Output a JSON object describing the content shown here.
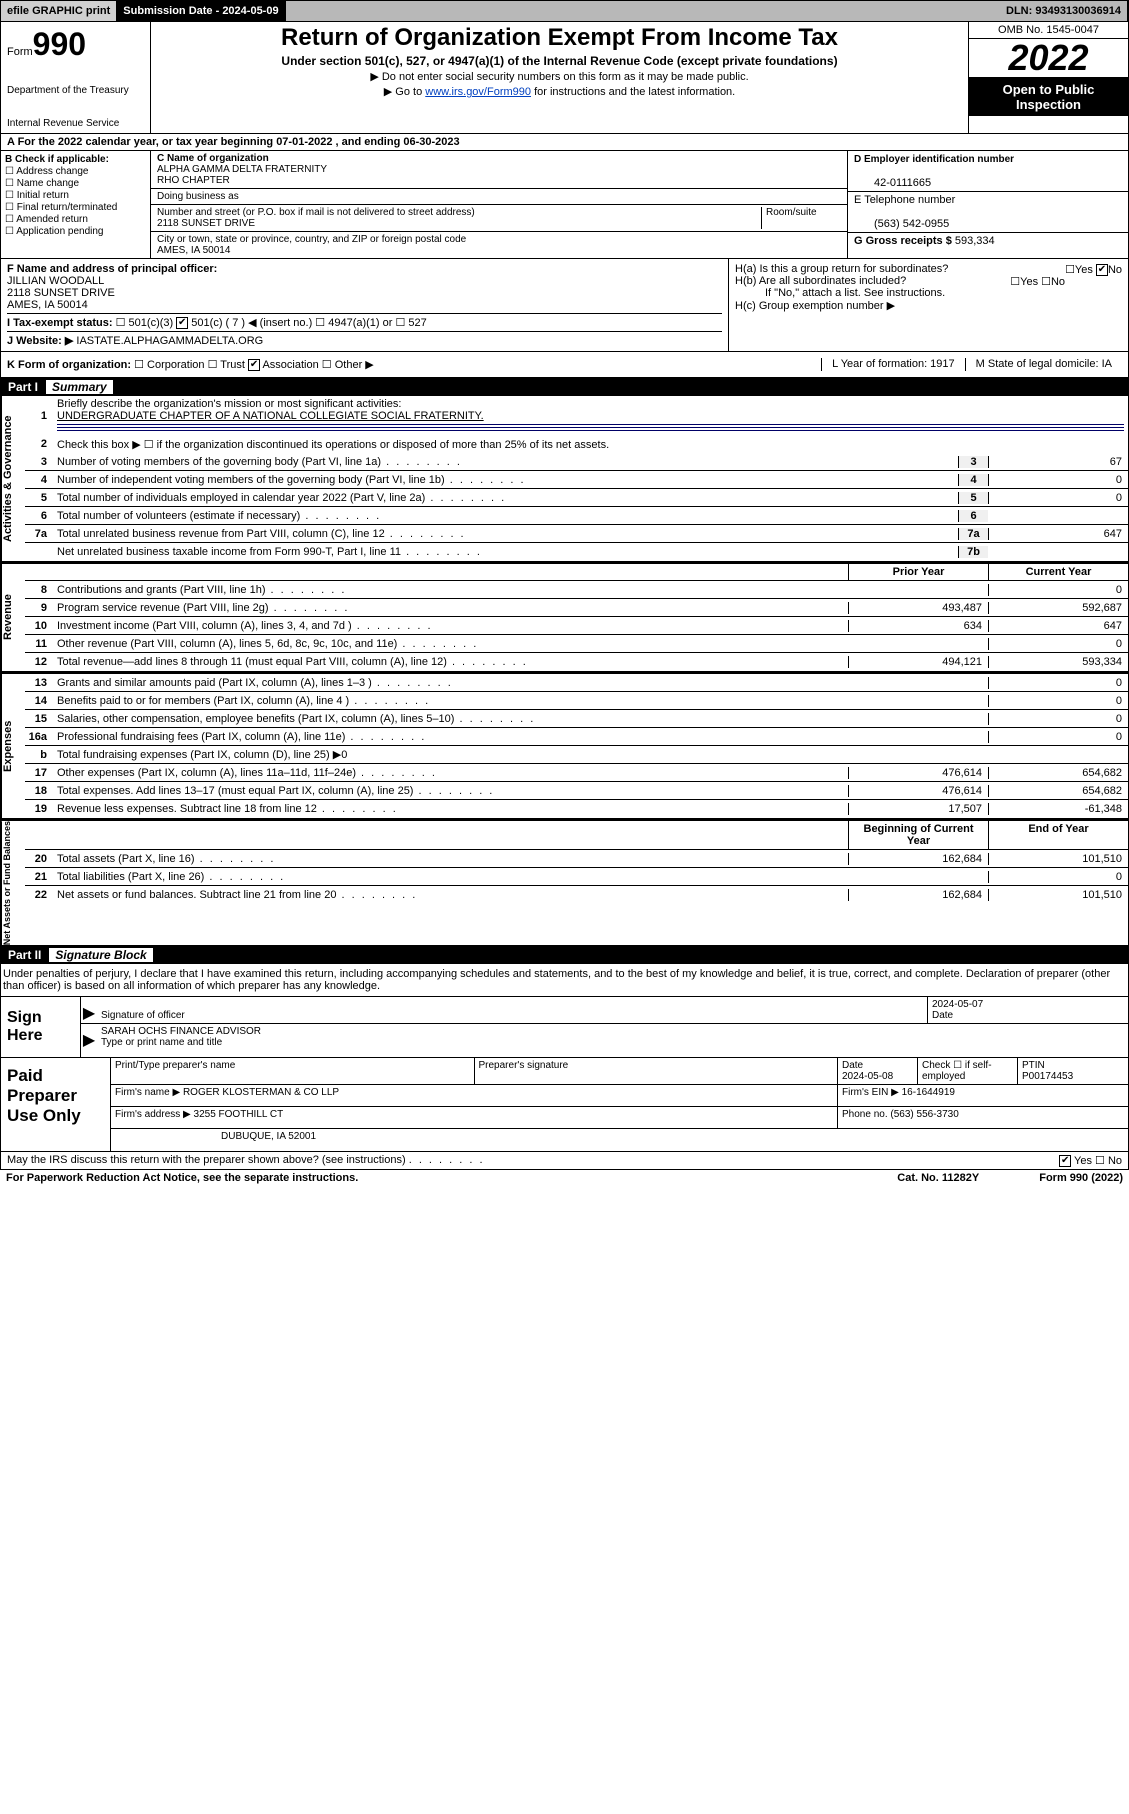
{
  "topbar": {
    "efile": "efile GRAPHIC print",
    "submission_label": "Submission Date - 2024-05-09",
    "dln": "DLN: 93493130036914"
  },
  "header": {
    "form_label": "Form",
    "form_number": "990",
    "dept": "Department of the Treasury",
    "irs": "Internal Revenue Service",
    "title": "Return of Organization Exempt From Income Tax",
    "sub1": "Under section 501(c), 527, or 4947(a)(1) of the Internal Revenue Code (except private foundations)",
    "sub2": "▶ Do not enter social security numbers on this form as it may be made public.",
    "sub3_pre": "▶ Go to ",
    "sub3_link": "www.irs.gov/Form990",
    "sub3_post": " for instructions and the latest information.",
    "omb": "OMB No. 1545-0047",
    "year": "2022",
    "open": "Open to Public Inspection"
  },
  "taxyear": "A For the 2022 calendar year, or tax year beginning 07-01-2022   , and ending 06-30-2023",
  "checkboxes": {
    "b_label": "B Check if applicable:",
    "items": [
      "Address change",
      "Name change",
      "Initial return",
      "Final return/terminated",
      "Amended return",
      "Application pending"
    ]
  },
  "org": {
    "c_label": "C Name of organization",
    "name": "ALPHA GAMMA DELTA FRATERNITY",
    "name2": "RHO CHAPTER",
    "dba_label": "Doing business as",
    "addr_label": "Number and street (or P.O. box if mail is not delivered to street address)",
    "room_label": "Room/suite",
    "addr": "2118 SUNSET DRIVE",
    "city_label": "City or town, state or province, country, and ZIP or foreign postal code",
    "city": "AMES, IA  50014"
  },
  "right": {
    "d_label": "D Employer identification number",
    "ein": "42-0111665",
    "e_label": "E Telephone number",
    "phone": "(563) 542-0955",
    "g_label": "G Gross receipts $",
    "gross": "593,334"
  },
  "officer": {
    "f_label": "F  Name and address of principal officer:",
    "name": "JILLIAN WOODALL",
    "addr": "2118 SUNSET DRIVE",
    "city": "AMES, IA  50014"
  },
  "h": {
    "ha": "H(a)  Is this a group return for subordinates?",
    "ha_no": "No",
    "hb": "H(b)  Are all subordinates included?",
    "hb_note": "If \"No,\" attach a list. See instructions.",
    "hc": "H(c)  Group exemption number ▶"
  },
  "i": {
    "label": "I     Tax-exempt status:",
    "opts": [
      "501(c)(3)",
      "501(c) ( 7 ) ◀ (insert no.)",
      "4947(a)(1) or",
      "527"
    ]
  },
  "j": {
    "label": "J    Website: ▶",
    "url": "IASTATE.ALPHAGAMMADELTA.ORG"
  },
  "k": {
    "label": "K Form of organization:",
    "opts": [
      "Corporation",
      "Trust",
      "Association",
      "Other ▶"
    ],
    "l": "L Year of formation: 1917",
    "m": "M State of legal domicile: IA"
  },
  "part1": {
    "num": "Part I",
    "title": "Summary"
  },
  "summary": {
    "line1": "Briefly describe the organization's mission or most significant activities:",
    "mission": "UNDERGRADUATE CHAPTER OF A NATIONAL COLLEGIATE SOCIAL FRATERNITY.",
    "line2": "Check this box ▶ ☐  if the organization discontinued its operations or disposed of more than 25% of its net assets.",
    "rows_gov": [
      {
        "n": "3",
        "d": "Number of voting members of the governing body (Part VI, line 1a)",
        "box": "3",
        "v": "67"
      },
      {
        "n": "4",
        "d": "Number of independent voting members of the governing body (Part VI, line 1b)",
        "box": "4",
        "v": "0"
      },
      {
        "n": "5",
        "d": "Total number of individuals employed in calendar year 2022 (Part V, line 2a)",
        "box": "5",
        "v": "0"
      },
      {
        "n": "6",
        "d": "Total number of volunteers (estimate if necessary)",
        "box": "6",
        "v": ""
      },
      {
        "n": "7a",
        "d": "Total unrelated business revenue from Part VIII, column (C), line 12",
        "box": "7a",
        "v": "647"
      },
      {
        "n": "",
        "d": "Net unrelated business taxable income from Form 990-T, Part I, line 11",
        "box": "7b",
        "v": ""
      }
    ],
    "col_prior": "Prior Year",
    "col_current": "Current Year",
    "rows_rev": [
      {
        "n": "8",
        "d": "Contributions and grants (Part VIII, line 1h)",
        "p": "",
        "c": "0"
      },
      {
        "n": "9",
        "d": "Program service revenue (Part VIII, line 2g)",
        "p": "493,487",
        "c": "592,687"
      },
      {
        "n": "10",
        "d": "Investment income (Part VIII, column (A), lines 3, 4, and 7d )",
        "p": "634",
        "c": "647"
      },
      {
        "n": "11",
        "d": "Other revenue (Part VIII, column (A), lines 5, 6d, 8c, 9c, 10c, and 11e)",
        "p": "",
        "c": "0"
      },
      {
        "n": "12",
        "d": "Total revenue—add lines 8 through 11 (must equal Part VIII, column (A), line 12)",
        "p": "494,121",
        "c": "593,334"
      }
    ],
    "rows_exp": [
      {
        "n": "13",
        "d": "Grants and similar amounts paid (Part IX, column (A), lines 1–3 )",
        "p": "",
        "c": "0"
      },
      {
        "n": "14",
        "d": "Benefits paid to or for members (Part IX, column (A), line 4 )",
        "p": "",
        "c": "0"
      },
      {
        "n": "15",
        "d": "Salaries, other compensation, employee benefits (Part IX, column (A), lines 5–10)",
        "p": "",
        "c": "0"
      },
      {
        "n": "16a",
        "d": "Professional fundraising fees (Part IX, column (A), line 11e)",
        "p": "",
        "c": "0"
      },
      {
        "n": "b",
        "d": "Total fundraising expenses (Part IX, column (D), line 25) ▶0",
        "p": "—",
        "c": "—"
      },
      {
        "n": "17",
        "d": "Other expenses (Part IX, column (A), lines 11a–11d, 11f–24e)",
        "p": "476,614",
        "c": "654,682"
      },
      {
        "n": "18",
        "d": "Total expenses. Add lines 13–17 (must equal Part IX, column (A), line 25)",
        "p": "476,614",
        "c": "654,682"
      },
      {
        "n": "19",
        "d": "Revenue less expenses. Subtract line 18 from line 12",
        "p": "17,507",
        "c": "-61,348"
      }
    ],
    "col_begin": "Beginning of Current Year",
    "col_end": "End of Year",
    "rows_net": [
      {
        "n": "20",
        "d": "Total assets (Part X, line 16)",
        "p": "162,684",
        "c": "101,510"
      },
      {
        "n": "21",
        "d": "Total liabilities (Part X, line 26)",
        "p": "",
        "c": "0"
      },
      {
        "n": "22",
        "d": "Net assets or fund balances. Subtract line 21 from line 20",
        "p": "162,684",
        "c": "101,510"
      }
    ]
  },
  "vtabs": {
    "gov": "Activities & Governance",
    "rev": "Revenue",
    "exp": "Expenses",
    "net": "Net Assets or Fund Balances"
  },
  "part2": {
    "num": "Part II",
    "title": "Signature Block"
  },
  "sig_intro": "Under penalties of perjury, I declare that I have examined this return, including accompanying schedules and statements, and to the best of my knowledge and belief, it is true, correct, and complete. Declaration of preparer (other than officer) is based on all information of which preparer has any knowledge.",
  "sign": {
    "here": "Sign Here",
    "sig_label": "Signature of officer",
    "date": "2024-05-07",
    "date_label": "Date",
    "name": "SARAH OCHS FINANCE ADVISOR",
    "name_label": "Type or print name and title"
  },
  "prep": {
    "title": "Paid Preparer Use Only",
    "h1": "Print/Type preparer's name",
    "h2": "Preparer's signature",
    "h3": "Date",
    "date": "2024-05-08",
    "h4": "Check ☐ if self-employed",
    "h5": "PTIN",
    "ptin": "P00174453",
    "firm_label": "Firm's name    ▶",
    "firm": "ROGER KLOSTERMAN & CO LLP",
    "ein_label": "Firm's EIN ▶",
    "ein": "16-1644919",
    "addr_label": "Firm's address ▶",
    "addr1": "3255 FOOTHILL CT",
    "addr2": "DUBUQUE, IA  52001",
    "phone_label": "Phone no.",
    "phone": "(563) 556-3730"
  },
  "footer": {
    "discuss": "May the IRS discuss this return with the preparer shown above? (see instructions)",
    "yes": "Yes",
    "no": "No",
    "paperwork": "For Paperwork Reduction Act Notice, see the separate instructions.",
    "cat": "Cat. No. 11282Y",
    "form": "Form 990 (2022)"
  }
}
